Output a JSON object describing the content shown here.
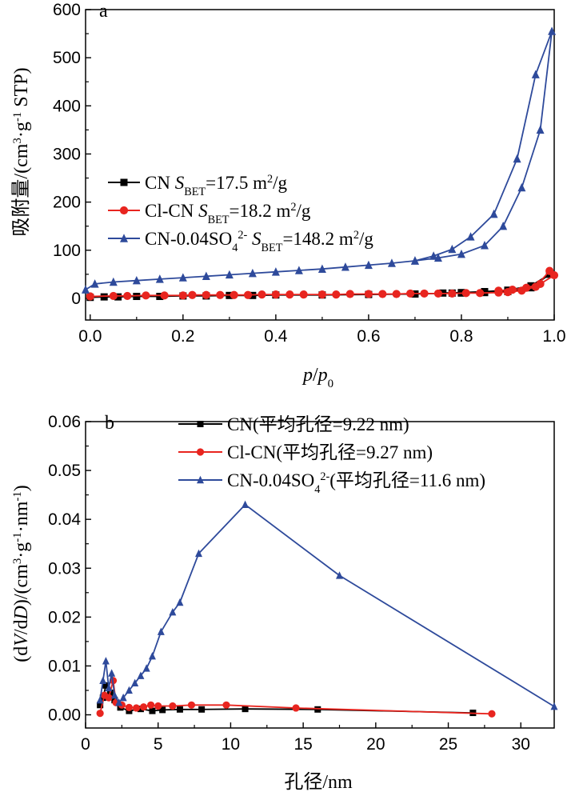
{
  "chart_data": [
    {
      "type": "line",
      "panel_label": "a",
      "xlabel_parts": [
        "p",
        "/",
        "p",
        "0"
      ],
      "ylabel_parts": [
        "吸附量/(cm",
        "3",
        "·g",
        "-1",
        " STP)"
      ],
      "xlim": [
        -0.01,
        1.0
      ],
      "ylim": [
        -45,
        600
      ],
      "xticks": [
        0.0,
        0.2,
        0.4,
        0.6,
        0.8,
        1.0
      ],
      "xtick_labels": [
        "0.0",
        "0.2",
        "0.4",
        "0.6",
        "0.8",
        "1.0"
      ],
      "yticks": [
        0,
        100,
        200,
        300,
        400,
        500,
        600
      ],
      "ytick_labels": [
        "0",
        "100",
        "200",
        "300",
        "400",
        "500",
        "600"
      ],
      "legend_position": "center-left",
      "series": [
        {
          "legend_parts": [
            "CN ",
            "S",
            "BET",
            "=17.5 m",
            "2",
            "/g"
          ],
          "color": "#000000",
          "marker": "square",
          "x": [
            0.0,
            0.03,
            0.06,
            0.1,
            0.15,
            0.2,
            0.25,
            0.3,
            0.35,
            0.4,
            0.5,
            0.6,
            0.7,
            0.78,
            0.8,
            0.85,
            0.9,
            0.95,
            0.99,
            0.95,
            0.9,
            0.85,
            0.8,
            0.76
          ],
          "y": [
            2,
            3,
            3,
            4,
            4,
            5,
            5,
            6,
            6,
            7,
            7,
            8,
            9,
            11,
            11,
            12,
            14,
            22,
            50,
            26,
            17,
            14,
            12,
            11
          ]
        },
        {
          "legend_parts": [
            "Cl-CN ",
            "S",
            "BET",
            "=18.2 m",
            "2",
            "/g"
          ],
          "color": "#e8251f",
          "marker": "circle",
          "x": [
            0.0,
            0.05,
            0.08,
            0.12,
            0.16,
            0.2,
            0.22,
            0.25,
            0.28,
            0.31,
            0.34,
            0.37,
            0.4,
            0.43,
            0.46,
            0.5,
            0.53,
            0.56,
            0.6,
            0.63,
            0.66,
            0.69,
            0.72,
            0.75,
            0.78,
            0.81,
            0.84,
            0.88,
            0.9,
            0.93,
            0.96,
            0.99,
            1.0,
            0.97,
            0.94,
            0.91,
            0.88
          ],
          "y": [
            4,
            5,
            5,
            6,
            6,
            6,
            7,
            7,
            7,
            7,
            7,
            8,
            8,
            8,
            8,
            8,
            8,
            9,
            9,
            9,
            9,
            10,
            10,
            10,
            10,
            11,
            11,
            12,
            13,
            16,
            24,
            57,
            48,
            30,
            22,
            18,
            16
          ]
        },
        {
          "legend_parts": [
            "CN-0.04SO",
            "4",
            "2-",
            " ",
            "S",
            "BET",
            "=148.2 m",
            "2",
            "/g"
          ],
          "color": "#2e4a9b",
          "marker": "triangle",
          "x": [
            -0.01,
            0.01,
            0.05,
            0.1,
            0.15,
            0.2,
            0.25,
            0.3,
            0.35,
            0.4,
            0.45,
            0.5,
            0.55,
            0.6,
            0.65,
            0.7,
            0.75,
            0.8,
            0.85,
            0.89,
            0.93,
            0.97,
            0.995,
            0.96,
            0.92,
            0.87,
            0.82,
            0.78,
            0.74,
            0.7
          ],
          "y": [
            18,
            30,
            34,
            37,
            40,
            43,
            46,
            49,
            52,
            55,
            58,
            61,
            65,
            69,
            73,
            78,
            84,
            92,
            110,
            150,
            230,
            350,
            555,
            465,
            290,
            175,
            128,
            102,
            88,
            78
          ]
        }
      ]
    },
    {
      "type": "line",
      "panel_label": "b",
      "xlabel_parts": [
        "孔径/nm"
      ],
      "ylabel_parts": [
        "(d",
        "V",
        "/d",
        "D",
        ")/(cm",
        "3",
        "·g",
        "-1",
        "·nm",
        "-1",
        ")"
      ],
      "xlim": [
        0,
        32.3
      ],
      "ylim": [
        -0.0027,
        0.06
      ],
      "xticks": [
        0,
        5,
        10,
        15,
        20,
        25,
        30
      ],
      "xtick_labels": [
        "0",
        "5",
        "10",
        "15",
        "20",
        "25",
        "30"
      ],
      "yticks": [
        0.0,
        0.01,
        0.02,
        0.03,
        0.04,
        0.05,
        0.06
      ],
      "ytick_labels": [
        "0.00",
        "0.01",
        "0.02",
        "0.03",
        "0.04",
        "0.05",
        "0.06"
      ],
      "legend_position": "top",
      "series": [
        {
          "legend_parts": [
            "CN(平均孔径=9.22 nm)"
          ],
          "color": "#000000",
          "marker": "square",
          "x": [
            1.0,
            1.2,
            1.4,
            1.7,
            2.0,
            2.4,
            3.0,
            3.8,
            4.6,
            5.3,
            6.5,
            8.0,
            11.0,
            16.0,
            26.7
          ],
          "y": [
            0.002,
            0.0035,
            0.006,
            0.0045,
            0.003,
            0.0015,
            0.0008,
            0.0012,
            0.0008,
            0.001,
            0.0011,
            0.0011,
            0.0012,
            0.0011,
            0.0004
          ]
        },
        {
          "legend_parts": [
            "Cl-CN(平均孔径=9.27 nm)"
          ],
          "color": "#e8251f",
          "marker": "circle",
          "x": [
            1.0,
            1.3,
            1.6,
            1.9,
            2.1,
            2.5,
            3.0,
            3.5,
            4.0,
            4.5,
            5.0,
            6.0,
            7.3,
            9.7,
            14.5,
            28.0
          ],
          "y": [
            0.0003,
            0.004,
            0.0035,
            0.007,
            0.0025,
            0.002,
            0.0015,
            0.0014,
            0.0016,
            0.002,
            0.0018,
            0.0018,
            0.002,
            0.002,
            0.0014,
            0.0002
          ]
        },
        {
          "legend_parts": [
            "CN-0.04SO",
            "4",
            "2-",
            "(平均孔径=11.6 nm)"
          ],
          "color": "#2e4a9b",
          "marker": "triangle",
          "x": [
            1.0,
            1.2,
            1.4,
            1.6,
            1.8,
            2.0,
            2.3,
            2.6,
            3.0,
            3.4,
            3.8,
            4.2,
            4.6,
            5.2,
            6.0,
            6.5,
            7.8,
            11.0,
            17.5,
            32.3
          ],
          "y": [
            0.003,
            0.007,
            0.011,
            0.0055,
            0.0085,
            0.004,
            0.0025,
            0.0035,
            0.005,
            0.0065,
            0.008,
            0.0095,
            0.012,
            0.017,
            0.021,
            0.023,
            0.033,
            0.043,
            0.0285,
            0.0017
          ]
        }
      ]
    }
  ]
}
